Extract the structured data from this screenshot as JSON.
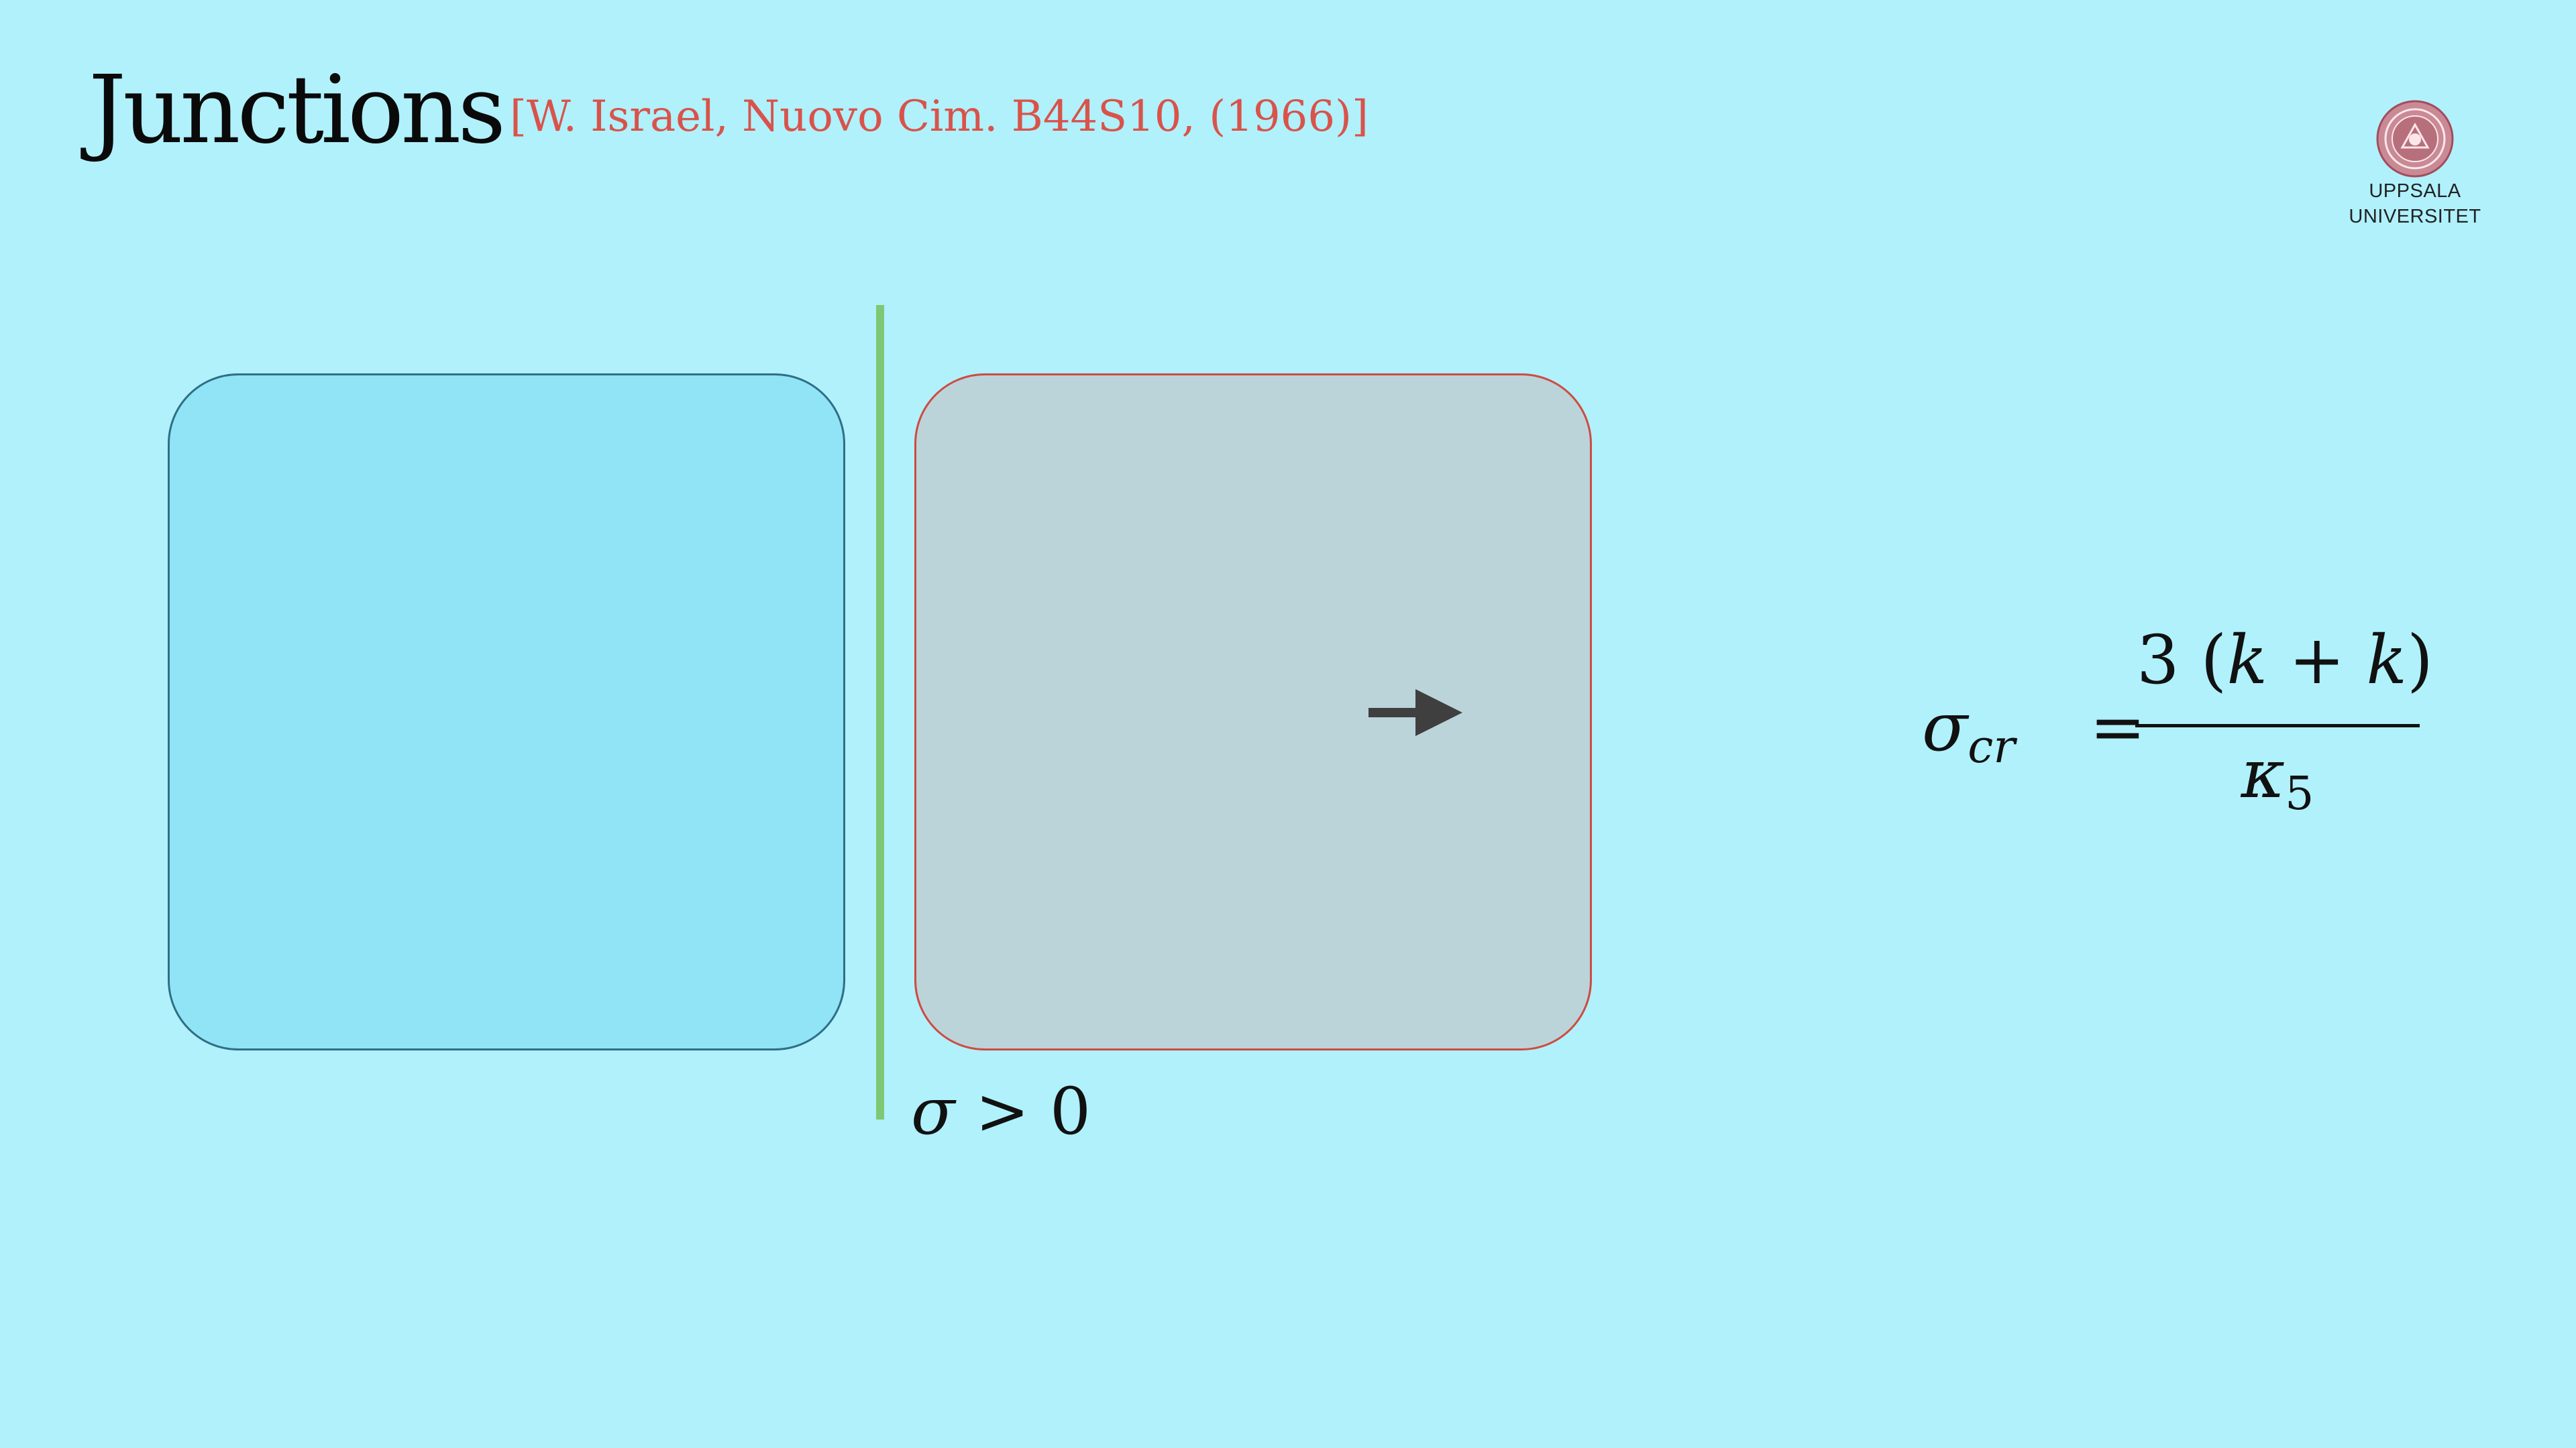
{
  "slide": {
    "title": "Junctions",
    "citation": "[W. Israel, Nuovo Cim. B44S10, (1966)]"
  },
  "logo": {
    "line1": "UPPSALA",
    "line2": "UNIVERSITET",
    "icon": "university-seal"
  },
  "diagram": {
    "left_region_color": "#91e4f5",
    "right_region_color": "#bbd4da",
    "junction_color": "#7dc873",
    "arrow_icon": "right-arrow",
    "condition": {
      "symbol": "σ",
      "relation": " > 0"
    }
  },
  "formula": {
    "lhs_symbol": "σ",
    "lhs_subscript": "cr",
    "equals": "=",
    "numerator_prefix": "3 (",
    "numerator_k1": "k",
    "numerator_plus": " + ",
    "numerator_k2": "k",
    "numerator_suffix": ")",
    "denominator_symbol": "κ",
    "denominator_subscript": "5"
  },
  "colors": {
    "background": "#b0f1fc",
    "citation": "#d9534a",
    "right_box_border": "#cf4b40",
    "left_box_border": "#2e6f86"
  }
}
